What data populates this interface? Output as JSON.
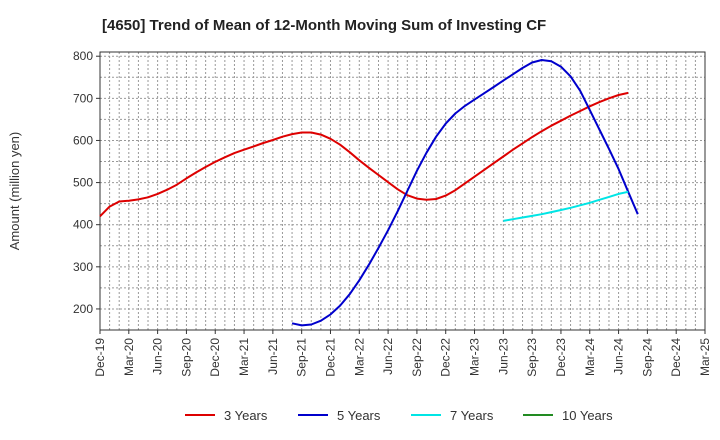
{
  "chart_data": {
    "type": "line",
    "title": "[4650]  Trend of Mean of 12-Month Moving Sum of Investing CF",
    "xlabel": "",
    "ylabel": "Amount (million yen)",
    "ylim": [
      150,
      810
    ],
    "yticks": [
      200,
      300,
      400,
      500,
      600,
      700,
      800
    ],
    "x_start": "2019-12",
    "x_end": "2025-03",
    "x_tick_labels": [
      "Dec-19",
      "Mar-20",
      "Jun-20",
      "Sep-20",
      "Dec-20",
      "Mar-21",
      "Jun-21",
      "Sep-21",
      "Dec-21",
      "Mar-22",
      "Jun-22",
      "Sep-22",
      "Dec-22",
      "Mar-23",
      "Jun-23",
      "Sep-23",
      "Dec-23",
      "Mar-24",
      "Jun-24",
      "Sep-24",
      "Dec-24",
      "Mar-25"
    ],
    "grid": true,
    "legend_position": "bottom",
    "series": [
      {
        "name": "3 Years",
        "color": "#dd0000",
        "points": [
          [
            "2019-12",
            420
          ],
          [
            "2020-01",
            443
          ],
          [
            "2020-02",
            455
          ],
          [
            "2020-03",
            457
          ],
          [
            "2020-04",
            460
          ],
          [
            "2020-05",
            465
          ],
          [
            "2020-06",
            473
          ],
          [
            "2020-07",
            483
          ],
          [
            "2020-08",
            495
          ],
          [
            "2020-09",
            510
          ],
          [
            "2020-10",
            524
          ],
          [
            "2020-11",
            537
          ],
          [
            "2020-12",
            549
          ],
          [
            "2021-01",
            560
          ],
          [
            "2021-02",
            570
          ],
          [
            "2021-03",
            578
          ],
          [
            "2021-04",
            586
          ],
          [
            "2021-05",
            594
          ],
          [
            "2021-06",
            601
          ],
          [
            "2021-07",
            609
          ],
          [
            "2021-08",
            615
          ],
          [
            "2021-09",
            619
          ],
          [
            "2021-10",
            619
          ],
          [
            "2021-11",
            614
          ],
          [
            "2021-12",
            604
          ],
          [
            "2022-01",
            590
          ],
          [
            "2022-02",
            572
          ],
          [
            "2022-03",
            553
          ],
          [
            "2022-04",
            535
          ],
          [
            "2022-05",
            518
          ],
          [
            "2022-06",
            501
          ],
          [
            "2022-07",
            484
          ],
          [
            "2022-08",
            470
          ],
          [
            "2022-09",
            462
          ],
          [
            "2022-10",
            459
          ],
          [
            "2022-11",
            461
          ],
          [
            "2022-12",
            469
          ],
          [
            "2023-01",
            482
          ],
          [
            "2023-02",
            498
          ],
          [
            "2023-03",
            514
          ],
          [
            "2023-04",
            530
          ],
          [
            "2023-05",
            546
          ],
          [
            "2023-06",
            562
          ],
          [
            "2023-07",
            578
          ],
          [
            "2023-08",
            593
          ],
          [
            "2023-09",
            608
          ],
          [
            "2023-10",
            622
          ],
          [
            "2023-11",
            635
          ],
          [
            "2023-12",
            647
          ],
          [
            "2024-01",
            659
          ],
          [
            "2024-02",
            670
          ],
          [
            "2024-03",
            681
          ],
          [
            "2024-04",
            691
          ],
          [
            "2024-05",
            700
          ],
          [
            "2024-06",
            708
          ],
          [
            "2024-07",
            713
          ]
        ]
      },
      {
        "name": "5 Years",
        "color": "#0000cc",
        "points": [
          [
            "2021-08",
            166
          ],
          [
            "2021-09",
            161
          ],
          [
            "2021-10",
            163
          ],
          [
            "2021-11",
            172
          ],
          [
            "2021-12",
            187
          ],
          [
            "2022-01",
            208
          ],
          [
            "2022-02",
            235
          ],
          [
            "2022-03",
            268
          ],
          [
            "2022-04",
            305
          ],
          [
            "2022-05",
            345
          ],
          [
            "2022-06",
            387
          ],
          [
            "2022-07",
            432
          ],
          [
            "2022-08",
            480
          ],
          [
            "2022-09",
            528
          ],
          [
            "2022-10",
            571
          ],
          [
            "2022-11",
            609
          ],
          [
            "2022-12",
            640
          ],
          [
            "2023-01",
            664
          ],
          [
            "2023-02",
            682
          ],
          [
            "2023-03",
            697
          ],
          [
            "2023-04",
            712
          ],
          [
            "2023-05",
            727
          ],
          [
            "2023-06",
            742
          ],
          [
            "2023-07",
            757
          ],
          [
            "2023-08",
            772
          ],
          [
            "2023-09",
            785
          ],
          [
            "2023-10",
            791
          ],
          [
            "2023-11",
            788
          ],
          [
            "2023-12",
            775
          ],
          [
            "2024-01",
            752
          ],
          [
            "2024-02",
            718
          ],
          [
            "2024-03",
            672
          ],
          [
            "2024-04",
            626
          ],
          [
            "2024-05",
            580
          ],
          [
            "2024-06",
            532
          ],
          [
            "2024-07",
            478
          ],
          [
            "2024-08",
            425
          ]
        ]
      },
      {
        "name": "7 Years",
        "color": "#00e5e5",
        "points": [
          [
            "2023-06",
            409
          ],
          [
            "2023-07",
            413
          ],
          [
            "2023-08",
            417
          ],
          [
            "2023-09",
            421
          ],
          [
            "2023-10",
            425
          ],
          [
            "2023-11",
            430
          ],
          [
            "2023-12",
            435
          ],
          [
            "2024-01",
            440
          ],
          [
            "2024-02",
            446
          ],
          [
            "2024-03",
            452
          ],
          [
            "2024-04",
            459
          ],
          [
            "2024-05",
            466
          ],
          [
            "2024-06",
            473
          ],
          [
            "2024-07",
            478
          ]
        ]
      },
      {
        "name": "10 Years",
        "color": "#228b22",
        "points": []
      }
    ]
  }
}
